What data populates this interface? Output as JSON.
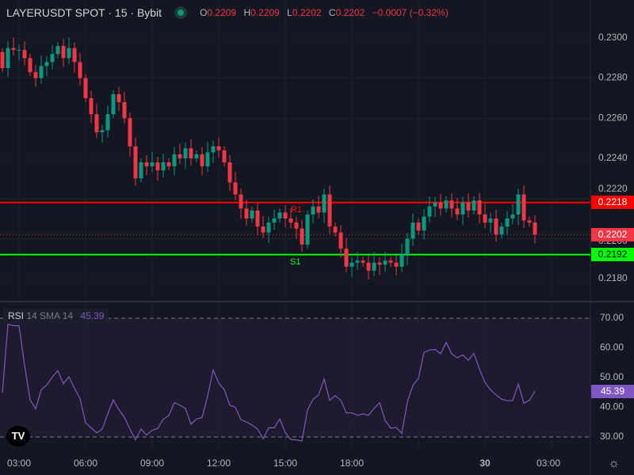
{
  "header": {
    "symbol": "LAYERUSDT SPOT · 15 · Bybit",
    "open_label": "O",
    "open": "0.2209",
    "high_label": "H",
    "high": "0.2209",
    "low_label": "L",
    "low": "0.2202",
    "close_label": "C",
    "close": "0.2202",
    "change": "−0.0007 (−0.32%)"
  },
  "rsi": {
    "name": "RSI",
    "params": "14 SMA 14",
    "value": "45.39",
    "color": "#7e57c2",
    "levels": [
      "70.00",
      "60.00",
      "50.00",
      "40.00",
      "30.00"
    ]
  },
  "price_axis": [
    "0.2300",
    "0.2280",
    "0.2260",
    "0.2240",
    "0.2220",
    "0.2200",
    "0.2180"
  ],
  "time_axis": [
    "03:00",
    "06:00",
    "09:00",
    "12:00",
    "15:00",
    "18:00",
    "30",
    "03:00"
  ],
  "lines": {
    "resistance": {
      "label": "R1",
      "value": "0.2218",
      "color": "#ff0000"
    },
    "support": {
      "label": "S1",
      "value": "0.2192",
      "color": "#00ff00"
    },
    "last": {
      "value": "0.2202",
      "color": "#f23645"
    }
  },
  "colors": {
    "up": "#089981",
    "down": "#f23645",
    "background": "#131722"
  },
  "logo": "TV",
  "chart_data": {
    "type": "candlestick",
    "closes": [
      0.2285,
      0.2295,
      0.2294,
      0.2294,
      0.229,
      0.2283,
      0.228,
      0.2286,
      0.2288,
      0.2292,
      0.2296,
      0.229,
      0.2295,
      0.2288,
      0.228,
      0.227,
      0.2262,
      0.2253,
      0.2254,
      0.2262,
      0.2272,
      0.2268,
      0.226,
      0.2246,
      0.223,
      0.2238,
      0.2236,
      0.2238,
      0.2234,
      0.2238,
      0.2236,
      0.2242,
      0.224,
      0.2245,
      0.224,
      0.2242,
      0.2236,
      0.2243,
      0.2246,
      0.2244,
      0.2238,
      0.2228,
      0.2222,
      0.2215,
      0.221,
      0.2214,
      0.2206,
      0.2203,
      0.2208,
      0.221,
      0.2213,
      0.221,
      0.2208,
      0.2205,
      0.2197,
      0.2212,
      0.2216,
      0.2213,
      0.2222,
      0.2206,
      0.2203,
      0.2195,
      0.2186,
      0.2188,
      0.2189,
      0.2188,
      0.2184,
      0.2188,
      0.2187,
      0.2189,
      0.2188,
      0.2186,
      0.2192,
      0.22,
      0.2208,
      0.2204,
      0.2211,
      0.2216,
      0.2218,
      0.2215,
      0.2219,
      0.2215,
      0.2212,
      0.2218,
      0.2214,
      0.2219,
      0.2212,
      0.2208,
      0.221,
      0.2202,
      0.2206,
      0.221,
      0.2212,
      0.2222,
      0.2209,
      0.2208,
      0.2202
    ],
    "ylim": [
      0.2172,
      0.231
    ]
  }
}
